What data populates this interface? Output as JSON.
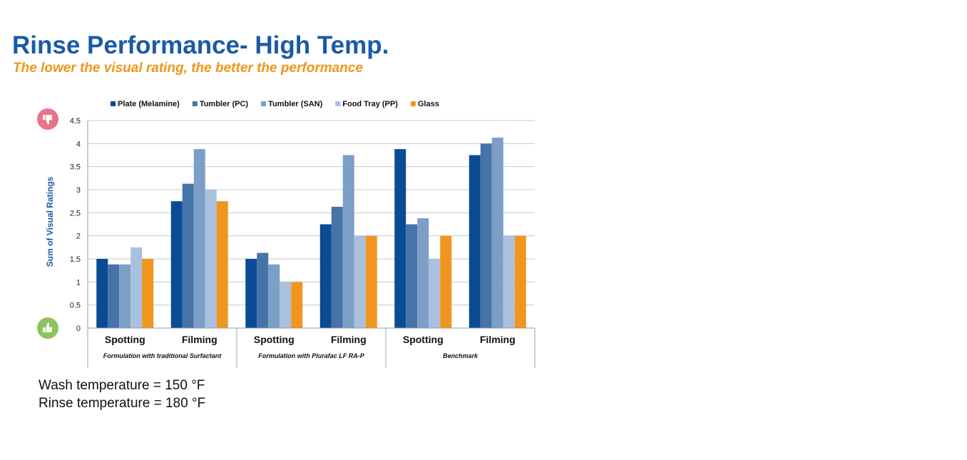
{
  "slide": {
    "title": "Rinse Performance- High Temp.",
    "subtitle": "The lower the visual rating, the better the performance",
    "notes": {
      "wash": "Wash temperature = 150 °F",
      "rinse": "Rinse temperature = 180 °F"
    }
  },
  "icons": {
    "top": "thumbs-down-icon",
    "bottom": "thumbs-up-icon"
  },
  "colors": {
    "title": "#1a5aa5",
    "subtitle": "#f0961e",
    "thumbs_down": "#e8748a",
    "thumbs_up": "#8cc35a",
    "grid": "#c8c8c8",
    "axis_title": "#1a5aa5"
  },
  "chart_data": {
    "type": "bar",
    "title": "",
    "xlabel": "",
    "ylabel": "Sum of Visual Ratings",
    "ylim": [
      0,
      4.5
    ],
    "yticks": [
      "0",
      "0.5",
      "1",
      "1.5",
      "2",
      "2.5",
      "3",
      "3.5",
      "4",
      "4.5"
    ],
    "grid": true,
    "legend_position": "top",
    "categories": [
      "Spotting",
      "Filming",
      "Spotting",
      "Filming",
      "Spotting",
      "Filming"
    ],
    "groups": [
      {
        "label": "Formulation with traditional Surfactant",
        "categories": [
          0,
          1
        ]
      },
      {
        "label": "Formulation with Plurafac LF RA-P",
        "categories": [
          2,
          3
        ]
      },
      {
        "label": "Benchmark",
        "categories": [
          4,
          5
        ]
      }
    ],
    "series": [
      {
        "name": "Plate (Melamine)",
        "color": "#0a4b94",
        "values": [
          1.5,
          2.75,
          1.5,
          2.25,
          3.88,
          3.75
        ]
      },
      {
        "name": "Tumbler (PC)",
        "color": "#4673aa",
        "values": [
          1.38,
          3.13,
          1.63,
          2.63,
          2.25,
          4.0
        ]
      },
      {
        "name": "Tumbler (SAN)",
        "color": "#7c9fc8",
        "values": [
          1.38,
          3.88,
          1.38,
          3.75,
          2.38,
          4.13
        ]
      },
      {
        "name": "Food Tray (PP)",
        "color": "#a9c0de",
        "values": [
          1.75,
          3.0,
          1.0,
          2.0,
          1.5,
          2.0
        ]
      },
      {
        "name": "Glass",
        "color": "#f0961e",
        "values": [
          1.5,
          2.75,
          1.0,
          2.0,
          2.0,
          2.0
        ]
      }
    ]
  }
}
